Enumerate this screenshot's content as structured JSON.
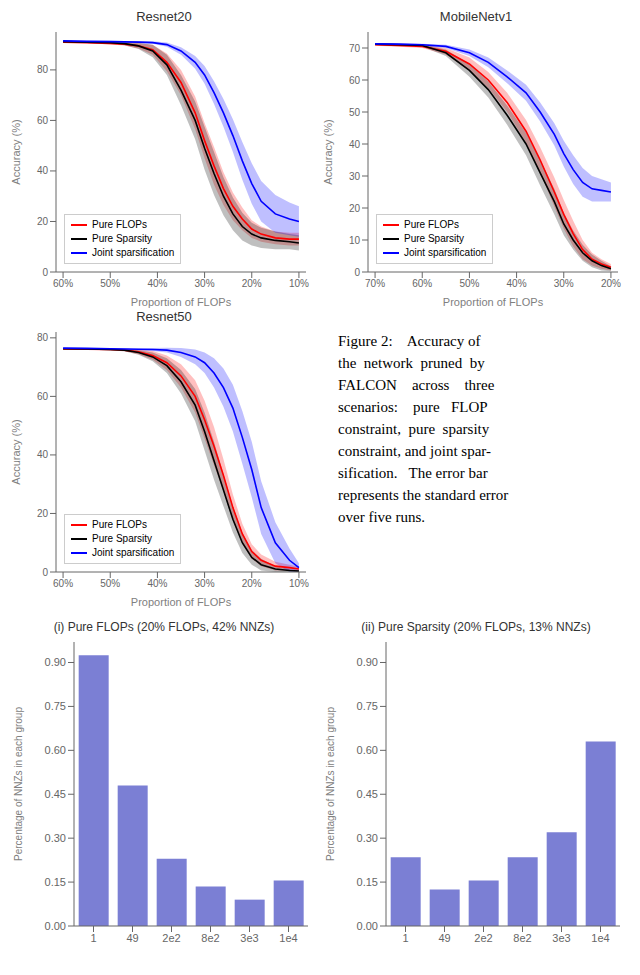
{
  "chart_data": [
    {
      "type": "line",
      "title": "Resnet20",
      "xlabel": "Proportion of FLOPs",
      "ylabel": "Accuracy (%)",
      "xlim": [
        0.615,
        0.085
      ],
      "xticks": [
        {
          "value": 0.6,
          "label": "60%"
        },
        {
          "value": 0.5,
          "label": "50%"
        },
        {
          "value": 0.4,
          "label": "40%"
        },
        {
          "value": 0.3,
          "label": "30%"
        },
        {
          "value": 0.2,
          "label": "20%"
        },
        {
          "value": 0.1,
          "label": "10%"
        }
      ],
      "ylim": [
        0,
        95
      ],
      "yticks": [
        0,
        20,
        40,
        60,
        80
      ],
      "legend": "lower left",
      "x": [
        0.6,
        0.55,
        0.5,
        0.47,
        0.44,
        0.41,
        0.38,
        0.35,
        0.32,
        0.3,
        0.28,
        0.26,
        0.24,
        0.22,
        0.2,
        0.18,
        0.15,
        0.12,
        0.1
      ],
      "series": [
        {
          "name": "Pure FLOPs",
          "color": "red",
          "values": [
            91.0,
            90.8,
            90.5,
            90.2,
            89.5,
            88.0,
            83.0,
            75.0,
            63.0,
            52.0,
            42.0,
            33.0,
            26.0,
            21.0,
            17.0,
            15.0,
            13.5,
            13.0,
            13.0
          ],
          "std": [
            0.3,
            0.3,
            0.4,
            0.5,
            1.0,
            2.0,
            3.5,
            5.0,
            6.5,
            7.0,
            7.5,
            6.5,
            5.5,
            4.5,
            3.5,
            3.0,
            2.5,
            2.5,
            2.5
          ]
        },
        {
          "name": "Pure Sparsity",
          "color": "black",
          "values": [
            91.2,
            91.0,
            90.8,
            90.4,
            89.5,
            87.5,
            82.0,
            72.0,
            60.0,
            49.0,
            39.0,
            30.0,
            23.0,
            18.0,
            15.0,
            13.5,
            12.5,
            12.0,
            11.5
          ],
          "std": [
            0.3,
            0.4,
            0.5,
            0.6,
            1.2,
            2.5,
            4.0,
            6.0,
            7.5,
            8.5,
            8.5,
            7.5,
            6.5,
            5.5,
            4.5,
            4.0,
            3.5,
            3.0,
            3.0
          ]
        },
        {
          "name": "Joint sparsification",
          "color": "blue",
          "values": [
            91.5,
            91.3,
            91.2,
            91.1,
            91.0,
            90.8,
            90.0,
            87.5,
            83.0,
            78.0,
            71.0,
            63.0,
            54.0,
            44.0,
            35.0,
            28.0,
            23.0,
            21.0,
            20.0
          ],
          "std": [
            0.2,
            0.2,
            0.3,
            0.3,
            0.4,
            0.5,
            0.8,
            1.5,
            2.5,
            3.5,
            4.5,
            5.5,
            6.5,
            7.5,
            8.0,
            8.0,
            7.5,
            6.5,
            6.0
          ]
        }
      ]
    },
    {
      "type": "line",
      "title": "MobileNetv1",
      "xlabel": "Proportion of FLOPs",
      "ylabel": "Accuracy (%)",
      "xlim": [
        0.715,
        0.185
      ],
      "xticks": [
        {
          "value": 0.7,
          "label": "70%"
        },
        {
          "value": 0.6,
          "label": "60%"
        },
        {
          "value": 0.5,
          "label": "50%"
        },
        {
          "value": 0.4,
          "label": "40%"
        },
        {
          "value": 0.3,
          "label": "30%"
        },
        {
          "value": 0.2,
          "label": "20%"
        }
      ],
      "ylim": [
        0,
        75
      ],
      "yticks": [
        0,
        10,
        20,
        30,
        40,
        50,
        60,
        70
      ],
      "legend": "lower left",
      "x": [
        0.7,
        0.65,
        0.6,
        0.55,
        0.5,
        0.46,
        0.42,
        0.38,
        0.35,
        0.32,
        0.3,
        0.28,
        0.26,
        0.24,
        0.22,
        0.2
      ],
      "series": [
        {
          "name": "Pure FLOPs",
          "color": "red",
          "values": [
            71.0,
            70.8,
            70.5,
            69.0,
            65.0,
            60.0,
            53.0,
            44.0,
            35.0,
            25.0,
            18.0,
            12.0,
            7.0,
            4.0,
            2.5,
            1.5
          ],
          "std": [
            0.3,
            0.4,
            0.5,
            1.0,
            2.0,
            2.5,
            3.0,
            3.5,
            4.0,
            4.5,
            4.5,
            4.0,
            3.0,
            2.0,
            1.5,
            1.0
          ]
        },
        {
          "name": "Pure Sparsity",
          "color": "black",
          "values": [
            71.2,
            71.0,
            70.8,
            68.5,
            63.0,
            57.0,
            49.0,
            40.0,
            31.0,
            22.0,
            15.0,
            10.0,
            6.0,
            3.5,
            2.0,
            1.0
          ],
          "std": [
            0.3,
            0.3,
            0.4,
            1.0,
            2.0,
            2.5,
            3.0,
            3.5,
            4.0,
            4.0,
            3.5,
            3.0,
            2.5,
            2.0,
            1.5,
            0.8
          ]
        },
        {
          "name": "Joint sparsification",
          "color": "blue",
          "values": [
            71.3,
            71.2,
            71.0,
            70.5,
            68.5,
            65.5,
            61.0,
            56.0,
            50.0,
            43.0,
            37.0,
            32.0,
            28.0,
            26.0,
            25.5,
            25.0
          ],
          "std": [
            0.2,
            0.2,
            0.3,
            0.5,
            1.0,
            1.5,
            2.0,
            2.5,
            3.0,
            3.5,
            4.0,
            4.5,
            4.5,
            4.0,
            3.5,
            3.0
          ]
        }
      ]
    },
    {
      "type": "line",
      "title": "Resnet50",
      "xlabel": "Proportion of FLOPs",
      "ylabel": "Accuracy (%)",
      "xlim": [
        0.615,
        0.085
      ],
      "xticks": [
        {
          "value": 0.6,
          "label": "60%"
        },
        {
          "value": 0.5,
          "label": "50%"
        },
        {
          "value": 0.4,
          "label": "40%"
        },
        {
          "value": 0.3,
          "label": "30%"
        },
        {
          "value": 0.2,
          "label": "20%"
        },
        {
          "value": 0.1,
          "label": "10%"
        }
      ],
      "ylim": [
        0,
        82
      ],
      "yticks": [
        0,
        20,
        40,
        60,
        80
      ],
      "legend": "lower left",
      "x": [
        0.6,
        0.55,
        0.5,
        0.47,
        0.44,
        0.41,
        0.38,
        0.35,
        0.32,
        0.3,
        0.28,
        0.26,
        0.24,
        0.22,
        0.2,
        0.18,
        0.15,
        0.12,
        0.1
      ],
      "series": [
        {
          "name": "Pure FLOPs",
          "color": "red",
          "values": [
            76.2,
            76.1,
            76.0,
            75.8,
            75.2,
            74.0,
            71.5,
            67.0,
            60.0,
            52.0,
            43.0,
            33.0,
            22.0,
            13.0,
            7.0,
            4.0,
            2.0,
            1.5,
            1.0
          ],
          "std": [
            0.2,
            0.2,
            0.3,
            0.4,
            0.8,
            1.5,
            2.5,
            4.0,
            5.5,
            6.5,
            6.5,
            5.5,
            4.5,
            3.5,
            2.5,
            2.0,
            1.5,
            1.0,
            0.8
          ]
        },
        {
          "name": "Pure Sparsity",
          "color": "black",
          "values": [
            76.3,
            76.2,
            76.0,
            75.8,
            75.0,
            73.5,
            70.5,
            65.0,
            57.0,
            48.0,
            38.0,
            28.0,
            18.0,
            10.0,
            5.0,
            2.5,
            1.0,
            0.5,
            0.3
          ],
          "std": [
            0.2,
            0.2,
            0.3,
            0.4,
            0.8,
            1.5,
            2.5,
            4.0,
            5.5,
            6.5,
            6.5,
            5.5,
            4.5,
            3.5,
            2.5,
            2.0,
            1.0,
            0.5,
            0.3
          ]
        },
        {
          "name": "Joint sparsification",
          "color": "blue",
          "values": [
            76.5,
            76.4,
            76.3,
            76.2,
            76.1,
            76.0,
            75.8,
            75.0,
            73.5,
            71.5,
            68.0,
            63.0,
            56.0,
            46.0,
            35.0,
            22.0,
            10.0,
            4.0,
            1.5
          ],
          "std": [
            0.15,
            0.15,
            0.2,
            0.25,
            0.3,
            0.5,
            0.8,
            1.5,
            2.5,
            3.5,
            5.0,
            6.5,
            8.0,
            9.0,
            9.5,
            9.0,
            7.0,
            4.0,
            1.5
          ]
        }
      ]
    },
    {
      "type": "bar",
      "title": "(i) Pure FLOPs (20% FLOPs, 42% NNZs)",
      "ylabel": "Percentage of NNZs in each group",
      "categories": [
        "1",
        "49",
        "2e2",
        "8e2",
        "3e3",
        "1e4"
      ],
      "values": [
        0.925,
        0.48,
        0.23,
        0.135,
        0.09,
        0.155
      ],
      "color": "#7b7fd4",
      "ylim": [
        0.0,
        0.97
      ],
      "yticks": [
        {
          "value": 0.0,
          "label": "0.00"
        },
        0.15,
        {
          "value": 0.3,
          "label": "0.30"
        },
        0.45,
        {
          "value": 0.6,
          "label": "0.60"
        },
        0.75,
        {
          "value": 0.9,
          "label": "0.90"
        }
      ]
    },
    {
      "type": "bar",
      "title": "(ii) Pure Sparsity (20% FLOPs, 13% NNZs)",
      "ylabel": "Percentage of NNZs in each group",
      "categories": [
        "1",
        "49",
        "2e2",
        "8e2",
        "3e3",
        "1e4"
      ],
      "values": [
        0.235,
        0.125,
        0.155,
        0.235,
        0.32,
        0.63
      ],
      "color": "#7b7fd4",
      "ylim": [
        0.0,
        0.97
      ],
      "yticks": [
        {
          "value": 0.0,
          "label": "0.00"
        },
        0.15,
        {
          "value": 0.3,
          "label": "0.30"
        },
        0.45,
        {
          "value": 0.6,
          "label": "0.60"
        },
        0.75,
        {
          "value": 0.9,
          "label": "0.90"
        }
      ]
    }
  ],
  "annotations": [
    "Figure 2:    Accuracy of",
    "the  network  pruned  by",
    "FALCON    across    three",
    "scenarios:    pure   FLOP",
    "constraint,  pure  sparsity",
    "constraint, and joint spar-",
    "sification.   The error bar",
    "represents the standard error",
    "over five runs."
  ]
}
